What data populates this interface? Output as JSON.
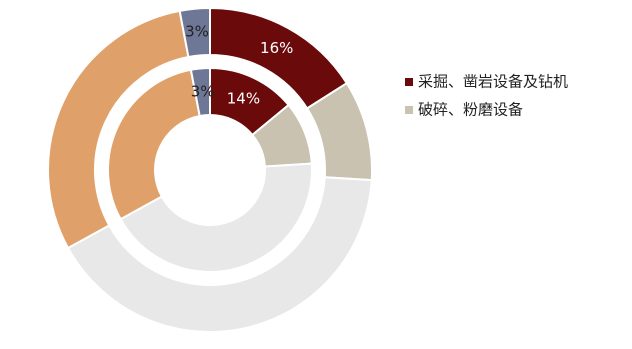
{
  "chart_data": {
    "type": "pie",
    "categories": [
      "采掘、凿岩设备及钻机",
      "破碎、粉磨设备",
      null,
      null,
      null
    ],
    "series": [
      {
        "values": [
          16,
          10,
          41,
          30,
          3
        ],
        "value_labels": [
          "16%",
          null,
          null,
          null,
          "3%"
        ]
      },
      {
        "values": [
          14,
          10,
          43,
          30,
          3
        ],
        "value_labels": [
          "14%",
          null,
          null,
          null,
          "3%"
        ]
      }
    ],
    "colors": [
      "#6b0a0a",
      "#c9c2b0",
      "#e8e8e8",
      "#e0a06a",
      "#6f7796"
    ]
  }
}
